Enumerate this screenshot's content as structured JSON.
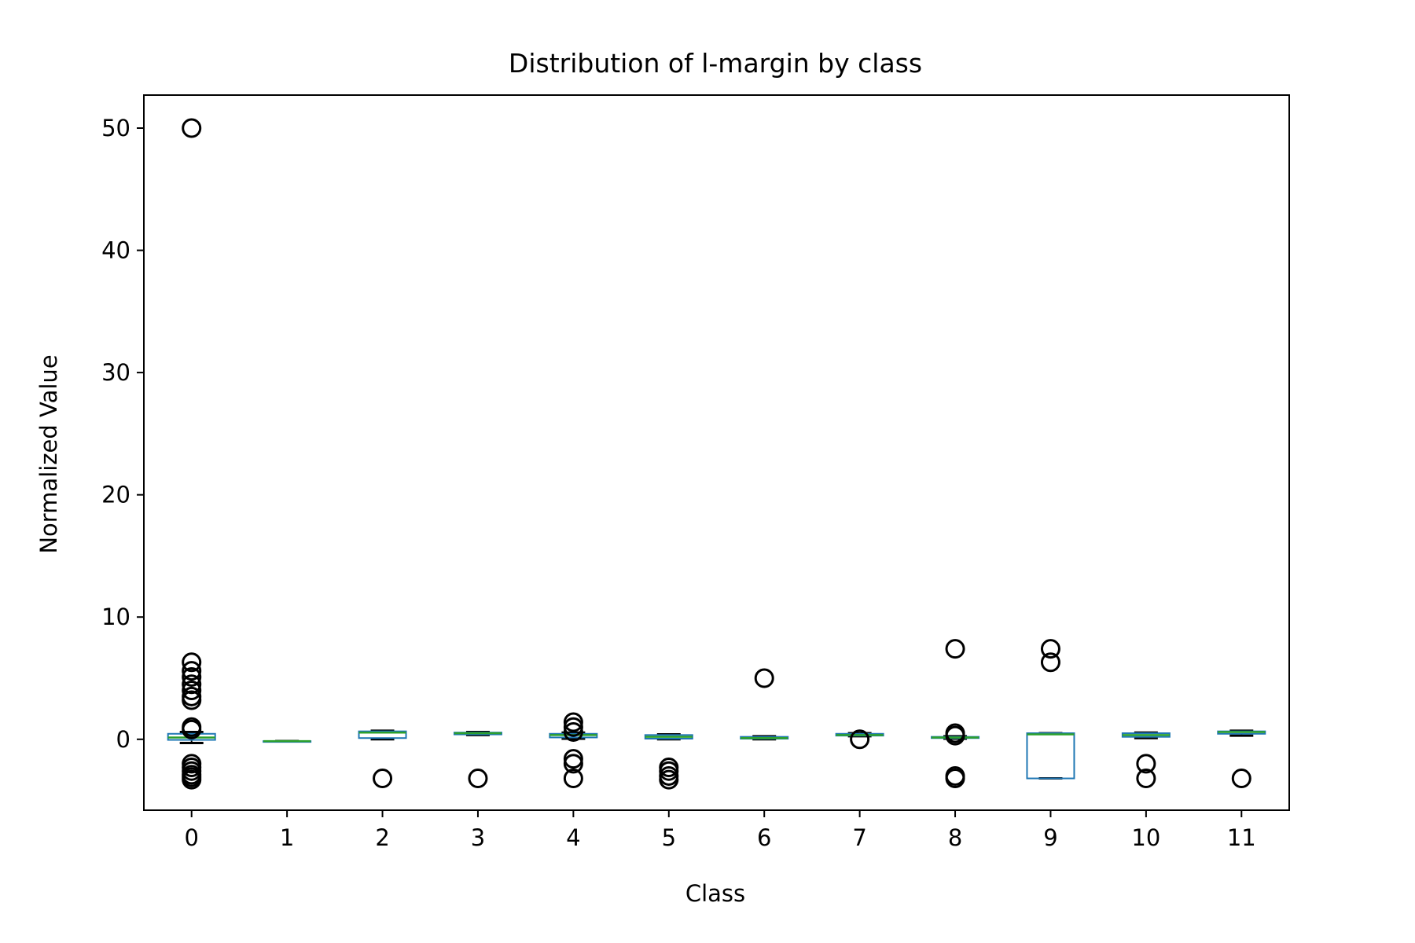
{
  "chart_data": {
    "type": "box",
    "title": "Distribution of l-margin by class",
    "xlabel": "Class",
    "ylabel": "Normalized Value",
    "ylim": [
      -5.8,
      52.7
    ],
    "yticks": [
      0,
      10,
      20,
      30,
      40,
      50
    ],
    "grid": false,
    "legend": "none",
    "colors": {
      "box": "#1f77b4",
      "median": "#2ca02c",
      "whisker": "#000000",
      "outlier": "#000000"
    },
    "categories": [
      "0",
      "1",
      "2",
      "3",
      "4",
      "5",
      "6",
      "7",
      "8",
      "9",
      "10",
      "11"
    ],
    "boxes": [
      {
        "label": "0",
        "whislo": -0.3,
        "q1": -0.05,
        "med": 0.15,
        "q3": 0.45,
        "whishi": 0.6,
        "fliers": [
          50.0,
          6.3,
          5.6,
          5.1,
          4.5,
          4.0,
          3.5,
          3.2,
          1.0,
          0.8,
          -2.0,
          -2.3,
          -2.6,
          -2.9,
          -3.1,
          -3.3
        ]
      },
      {
        "label": "1",
        "whislo": -0.15,
        "q1": -0.15,
        "med": -0.15,
        "q3": -0.15,
        "whishi": -0.15,
        "fliers": []
      },
      {
        "label": "2",
        "whislo": 0.0,
        "q1": 0.1,
        "med": 0.55,
        "q3": 0.65,
        "whishi": 0.7,
        "fliers": [
          -3.2
        ]
      },
      {
        "label": "3",
        "whislo": 0.35,
        "q1": 0.4,
        "med": 0.5,
        "q3": 0.55,
        "whishi": 0.6,
        "fliers": [
          -3.2
        ]
      },
      {
        "label": "4",
        "whislo": 0.05,
        "q1": 0.15,
        "med": 0.35,
        "q3": 0.45,
        "whishi": 0.55,
        "fliers": [
          1.4,
          1.0,
          0.6,
          -1.6,
          -2.0,
          -3.2
        ]
      },
      {
        "label": "5",
        "whislo": 0.0,
        "q1": 0.05,
        "med": 0.2,
        "q3": 0.35,
        "whishi": 0.4,
        "fliers": [
          -2.3,
          -2.6,
          -3.0,
          -3.3
        ]
      },
      {
        "label": "6",
        "whislo": 0.0,
        "q1": 0.05,
        "med": 0.1,
        "q3": 0.2,
        "whishi": 0.25,
        "fliers": [
          5.0
        ]
      },
      {
        "label": "7",
        "whislo": 0.25,
        "q1": 0.3,
        "med": 0.35,
        "q3": 0.45,
        "whishi": 0.5,
        "fliers": [
          0.0
        ]
      },
      {
        "label": "8",
        "whislo": 0.05,
        "q1": 0.1,
        "med": 0.15,
        "q3": 0.2,
        "whishi": 0.25,
        "fliers": [
          7.4,
          0.5,
          0.3,
          -3.0,
          -3.2
        ]
      },
      {
        "label": "9",
        "whislo": -3.2,
        "q1": -3.2,
        "med": 0.4,
        "q3": 0.5,
        "whishi": 0.5,
        "fliers": [
          7.4,
          6.3
        ]
      },
      {
        "label": "10",
        "whislo": 0.1,
        "q1": 0.2,
        "med": 0.35,
        "q3": 0.5,
        "whishi": 0.55,
        "fliers": [
          -2.0,
          -3.2
        ]
      },
      {
        "label": "11",
        "whislo": 0.3,
        "q1": 0.45,
        "med": 0.6,
        "q3": 0.65,
        "whishi": 0.7,
        "fliers": [
          -3.2
        ]
      }
    ]
  }
}
